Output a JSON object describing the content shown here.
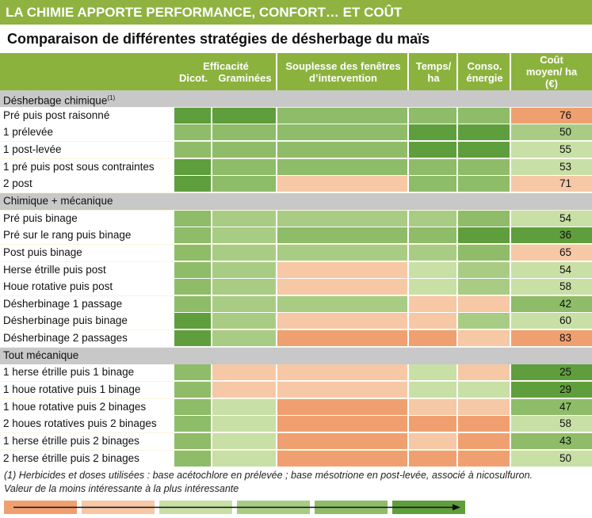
{
  "banner": "LA CHIMIE APPORTE PERFORMANCE, CONFORT… ET COÛT",
  "subtitle": "Comparaison de différentes stratégies de désherbage du maïs",
  "headers": {
    "efficacite": "Efficacité",
    "dicot": "Dicot.",
    "graminees": "Graminées",
    "souplesse": "Souplesse des fenêtres d’intervention",
    "temps": "Temps/ ha",
    "conso": "Conso. énergie",
    "cout": "Coût moyen/ ha (€)"
  },
  "colors": {
    "1": "#f0a070",
    "2": "#f6c8a6",
    "3": "#c8dfa6",
    "4": "#a9cc84",
    "5": "#8ebc68",
    "6": "#5f9e3c"
  },
  "rows": [
    {
      "type": "section",
      "label": "Désherbage chimique",
      "sup": "(1)"
    },
    {
      "type": "data",
      "label": "Pré puis post raisonné",
      "levels": [
        6,
        6,
        5,
        5,
        5
      ],
      "cost_level": 1,
      "cost": "76"
    },
    {
      "type": "data",
      "label": "1 prélevée",
      "levels": [
        5,
        5,
        5,
        6,
        6
      ],
      "cost_level": 4,
      "cost": "50"
    },
    {
      "type": "data",
      "label": "1 post-levée",
      "levels": [
        5,
        5,
        5,
        6,
        6
      ],
      "cost_level": 3,
      "cost": "55"
    },
    {
      "type": "data",
      "label": "1 pré puis post sous contraintes",
      "levels": [
        6,
        5,
        5,
        5,
        5
      ],
      "cost_level": 3,
      "cost": "53"
    },
    {
      "type": "data",
      "label": "2 post",
      "levels": [
        6,
        5,
        2,
        5,
        5
      ],
      "cost_level": 2,
      "cost": "71"
    },
    {
      "type": "section",
      "label": "Chimique + mécanique",
      "sup": ""
    },
    {
      "type": "data",
      "label": "Pré puis binage",
      "levels": [
        5,
        4,
        4,
        4,
        5
      ],
      "cost_level": 3,
      "cost": "54"
    },
    {
      "type": "data",
      "label": "Pré sur le rang puis binage",
      "levels": [
        5,
        4,
        5,
        5,
        6
      ],
      "cost_level": 6,
      "cost": "36"
    },
    {
      "type": "data",
      "label": "Post puis binage",
      "levels": [
        5,
        4,
        4,
        4,
        5
      ],
      "cost_level": 2,
      "cost": "65"
    },
    {
      "type": "data",
      "label": "Herse étrille puis post",
      "levels": [
        5,
        4,
        2,
        3,
        4
      ],
      "cost_level": 3,
      "cost": "54"
    },
    {
      "type": "data",
      "label": "Houe rotative puis post",
      "levels": [
        5,
        4,
        2,
        3,
        4
      ],
      "cost_level": 3,
      "cost": "58"
    },
    {
      "type": "data",
      "label": "Désherbinage 1 passage",
      "levels": [
        5,
        4,
        4,
        2,
        2
      ],
      "cost_level": 5,
      "cost": "42"
    },
    {
      "type": "data",
      "label": "Désherbinage puis binage",
      "levels": [
        6,
        4,
        2,
        2,
        4
      ],
      "cost_level": 3,
      "cost": "60"
    },
    {
      "type": "data",
      "label": "Désherbinage 2 passages",
      "levels": [
        6,
        4,
        1,
        1,
        2
      ],
      "cost_level": 1,
      "cost": "83"
    },
    {
      "type": "section",
      "label": "Tout mécanique",
      "sup": ""
    },
    {
      "type": "data",
      "label": "1 herse étrille puis 1 binage",
      "levels": [
        5,
        2,
        2,
        3,
        2
      ],
      "cost_level": 6,
      "cost": "25"
    },
    {
      "type": "data",
      "label": "1 houe rotative puis 1 binage",
      "levels": [
        5,
        2,
        2,
        3,
        3
      ],
      "cost_level": 6,
      "cost": "29"
    },
    {
      "type": "data",
      "label": "1 houe rotative puis 2 binages",
      "levels": [
        5,
        3,
        1,
        2,
        2
      ],
      "cost_level": 5,
      "cost": "47"
    },
    {
      "type": "data",
      "label": "2 houes rotatives puis 2 binages",
      "levels": [
        5,
        3,
        1,
        1,
        1
      ],
      "cost_level": 3,
      "cost": "58"
    },
    {
      "type": "data",
      "label": "1 herse étrille puis 2 binages",
      "levels": [
        5,
        3,
        1,
        2,
        1
      ],
      "cost_level": 5,
      "cost": "43"
    },
    {
      "type": "data",
      "label": "2 herse étrille puis 2 binages",
      "levels": [
        5,
        3,
        1,
        1,
        1
      ],
      "cost_level": 3,
      "cost": "50"
    }
  ],
  "footnote1": "(1) Herbicides et doses utilisées : base acétochlore en prélevée ; base mésotrione en post-levée, associé à nicosulfuron.",
  "footnote2": "Valeur de la moins intéressante à la plus intéressante",
  "scale_levels": [
    1,
    2,
    3,
    4,
    5,
    6
  ]
}
